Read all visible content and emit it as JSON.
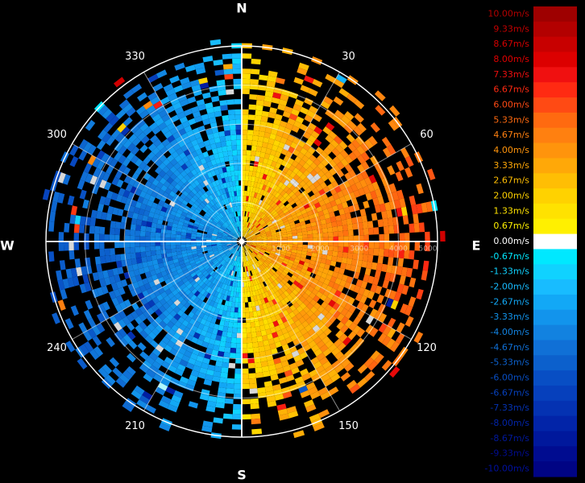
{
  "chart_data": {
    "type": "heatmap",
    "projection": "polar",
    "compass": {
      "north": "N",
      "south": "S",
      "east": "E",
      "west": "W"
    },
    "azimuth_labels": [
      "30",
      "60",
      "120",
      "150",
      "210",
      "240",
      "300",
      "330"
    ],
    "range_rings": [
      "1000",
      "2000",
      "3000",
      "4000",
      "5000"
    ],
    "range_max": 5000,
    "colorbar": {
      "labels": [
        "10.00m/s",
        "9.33m/s",
        "8.67m/s",
        "8.00m/s",
        "7.33m/s",
        "6.67m/s",
        "6.00m/s",
        "5.33m/s",
        "4.67m/s",
        "4.00m/s",
        "3.33m/s",
        "2.67m/s",
        "2.00m/s",
        "1.33m/s",
        "0.67m/s",
        "0.00m/s",
        "-0.67m/s",
        "-1.33m/s",
        "-2.00m/s",
        "-2.67m/s",
        "-3.33m/s",
        "-4.00m/s",
        "-4.67m/s",
        "-5.33m/s",
        "-6.00m/s",
        "-6.67m/s",
        "-7.33m/s",
        "-8.00m/s",
        "-8.67m/s",
        "-9.33m/s",
        "-10.00m/s"
      ],
      "colors": [
        "#9e0000",
        "#b30000",
        "#c80000",
        "#dc0000",
        "#f01010",
        "#ff2a12",
        "#ff4a14",
        "#ff6a10",
        "#ff8010",
        "#ff940c",
        "#ffa808",
        "#ffbe04",
        "#ffd200",
        "#ffe200",
        "#fff000",
        "#ffffff",
        "#00e8ff",
        "#10d2ff",
        "#18bcff",
        "#12a8f6",
        "#1294ec",
        "#1282e0",
        "#1070d6",
        "#0c60cc",
        "#084ec4",
        "#0640bc",
        "#0432b2",
        "#0224a8",
        "#00189c",
        "#000c90",
        "#000484"
      ],
      "label_colors": [
        "#b20000",
        "#c40000",
        "#d40000",
        "#e00000",
        "#ee0e0e",
        "#ff2a12",
        "#ff4a14",
        "#ff6a10",
        "#ff8010",
        "#ff940c",
        "#ffa808",
        "#ffbe04",
        "#ffd200",
        "#ffe200",
        "#fff000",
        "#ffffff",
        "#00e8ff",
        "#10d2ff",
        "#18bcff",
        "#12a8f6",
        "#1294ec",
        "#1282e0",
        "#1070d6",
        "#0c60cc",
        "#084ec4",
        "#0640bc",
        "#0432b2",
        "#0224a8",
        "#00189c",
        "#000c90",
        "#0010a0"
      ]
    },
    "value_range": [
      -10,
      10
    ],
    "value_unit": "m/s",
    "observed_pattern": {
      "approaching_sector_deg": [
        180,
        360
      ],
      "receding_sector_deg": [
        0,
        180
      ],
      "typical_speed_mps": 4.5,
      "peak_speed_mps": 8
    }
  }
}
